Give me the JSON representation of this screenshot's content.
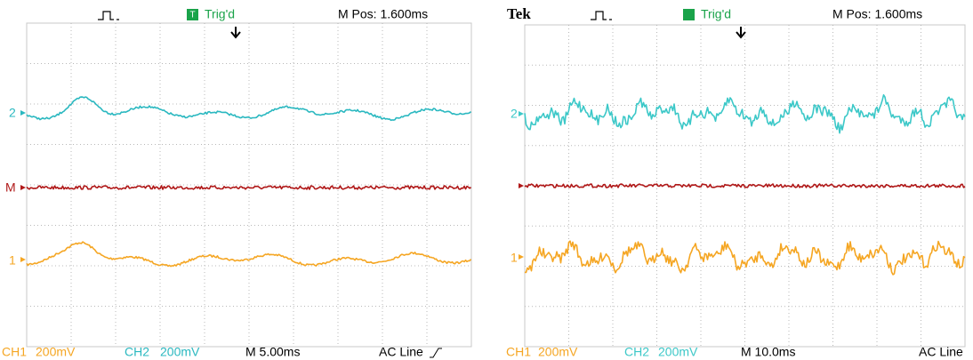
{
  "screens": [
    {
      "header": {
        "status": "Trig'd",
        "position": "M Pos: 1.600ms"
      },
      "markers": {
        "ch2": "2",
        "math": "M",
        "ch1": "1"
      },
      "footer": {
        "ch1": "CH1",
        "ch1_scale": "200mV",
        "ch2": "CH2",
        "ch2_scale": "200mV",
        "timebase": "M 5.00ms",
        "trigger": "AC Line"
      }
    },
    {
      "header": {
        "brand": "Tek",
        "status": "Trig'd",
        "position": "M Pos: 1.600ms"
      },
      "markers": {
        "ch2": "2",
        "ch1": "1"
      },
      "footer": {
        "ch1": "CH1",
        "ch1_scale": "200mV",
        "ch2": "CH2",
        "ch2_scale": "200mV",
        "timebase": "M 10.0ms",
        "trigger": "AC Line"
      }
    }
  ]
}
